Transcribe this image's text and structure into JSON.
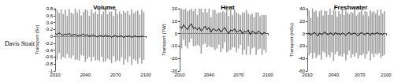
{
  "row_label": "Davis Strait",
  "chart_data": [
    {
      "type": "line",
      "title": "Volume",
      "y_label": "Transport (Sv)",
      "color": "#000000",
      "grid": false,
      "xlim": [
        2010,
        2100
      ],
      "xticks": [
        2010,
        2040,
        2070,
        2100
      ],
      "ylim": [
        -1,
        0.8
      ],
      "yticks": [
        -1,
        -0.8,
        -0.6,
        -0.4,
        -0.2,
        0,
        0.2,
        0.4,
        0.6,
        0.8
      ],
      "x": [
        2010,
        2012,
        2014,
        2016,
        2018,
        2020,
        2022,
        2024,
        2026,
        2028,
        2030,
        2032,
        2034,
        2036,
        2038,
        2040,
        2042,
        2044,
        2046,
        2048,
        2050,
        2052,
        2054,
        2056,
        2058,
        2060,
        2062,
        2064,
        2066,
        2068,
        2070,
        2072,
        2074,
        2076,
        2078,
        2080,
        2082,
        2084,
        2086,
        2088,
        2090,
        2092,
        2094,
        2096,
        2098
      ],
      "values": [
        0.08,
        0.05,
        0.1,
        0.06,
        0.03,
        0.07,
        0.04,
        0.09,
        0.02,
        0.05,
        0.06,
        0.01,
        0.04,
        0.03,
        0.07,
        0.02,
        0.05,
        0.0,
        0.03,
        0.04,
        0.01,
        -0.02,
        0.03,
        0.02,
        -0.01,
        0.04,
        0.0,
        0.02,
        -0.03,
        0.01,
        0.03,
        -0.02,
        0.0,
        0.02,
        -0.04,
        0.01,
        -0.01,
        0.02,
        -0.03,
        0.0,
        0.01,
        -0.02,
        0.0,
        -0.01,
        0.01
      ],
      "errors": [
        0.65,
        0.72,
        0.58,
        0.72,
        0.62,
        0.7,
        0.55,
        0.7,
        0.66,
        0.6,
        0.74,
        0.68,
        0.74,
        0.57,
        0.64,
        0.76,
        0.7,
        0.59,
        0.75,
        0.63,
        0.71,
        0.66,
        0.75,
        0.61,
        0.73,
        0.76,
        0.64,
        0.69,
        0.75,
        0.58,
        0.76,
        0.67,
        0.72,
        0.62,
        0.78,
        0.68,
        0.74,
        0.6,
        0.8,
        0.66,
        0.71,
        0.77,
        0.63,
        0.78,
        0.69
      ]
    },
    {
      "type": "line",
      "title": "Heat",
      "y_label": "Transport (TW)",
      "color": "#000000",
      "grid": false,
      "xlim": [
        2010,
        2100
      ],
      "xticks": [
        2010,
        2040,
        2070,
        2100
      ],
      "ylim": [
        -30,
        20
      ],
      "yticks": [
        -30,
        -20,
        -10,
        0,
        10,
        20
      ],
      "x": [
        2010,
        2012,
        2014,
        2016,
        2018,
        2020,
        2022,
        2024,
        2026,
        2028,
        2030,
        2032,
        2034,
        2036,
        2038,
        2040,
        2042,
        2044,
        2046,
        2048,
        2050,
        2052,
        2054,
        2056,
        2058,
        2060,
        2062,
        2064,
        2066,
        2068,
        2070,
        2072,
        2074,
        2076,
        2078,
        2080,
        2082,
        2084,
        2086,
        2088,
        2090,
        2092,
        2094,
        2096,
        2098
      ],
      "values": [
        6,
        4,
        7,
        5,
        3,
        6,
        8,
        4,
        5,
        3,
        5,
        2,
        4,
        6,
        3,
        5,
        1,
        4,
        3,
        2,
        4,
        1,
        3,
        5,
        2,
        0,
        3,
        2,
        4,
        1,
        2,
        3,
        0,
        2,
        1,
        3,
        -1,
        2,
        1,
        0,
        2,
        1,
        -1,
        1,
        0
      ],
      "errors": [
        14,
        16,
        12,
        15,
        15,
        13,
        12,
        14,
        15,
        12,
        15,
        18,
        13,
        14,
        14,
        15,
        12,
        15,
        16,
        14,
        13,
        16,
        15,
        12,
        17,
        14,
        16,
        13,
        15,
        16,
        14,
        12,
        17,
        15,
        18,
        13,
        16,
        14,
        12,
        17,
        15,
        13,
        16,
        14,
        15
      ]
    },
    {
      "type": "line",
      "title": "Freshwater",
      "y_label": "Transport (mSv)",
      "color": "#000000",
      "grid": false,
      "xlim": [
        2010,
        2100
      ],
      "xticks": [
        2010,
        2040,
        2070,
        2100
      ],
      "ylim": [
        -60,
        40
      ],
      "yticks": [
        -60,
        -40,
        -20,
        0,
        20,
        40
      ],
      "x": [
        2010,
        2012,
        2014,
        2016,
        2018,
        2020,
        2022,
        2024,
        2026,
        2028,
        2030,
        2032,
        2034,
        2036,
        2038,
        2040,
        2042,
        2044,
        2046,
        2048,
        2050,
        2052,
        2054,
        2056,
        2058,
        2060,
        2062,
        2064,
        2066,
        2068,
        2070,
        2072,
        2074,
        2076,
        2078,
        2080,
        2082,
        2084,
        2086,
        2088,
        2090,
        2092,
        2094,
        2096,
        2098
      ],
      "values": [
        -2,
        1,
        -3,
        0,
        2,
        -1,
        -4,
        1,
        -2,
        0,
        3,
        -1,
        -2,
        1,
        0,
        -3,
        2,
        -1,
        0,
        -2,
        1,
        -1,
        -3,
        0,
        2,
        -2,
        0,
        1,
        -1,
        -4,
        0,
        2,
        -1,
        -2,
        1,
        0,
        -3,
        1,
        -1,
        0,
        2,
        -1,
        0,
        -2,
        1
      ],
      "errors": [
        30,
        36,
        28,
        40,
        33,
        38,
        31,
        35,
        40,
        29,
        34,
        37,
        32,
        39,
        30,
        41,
        35,
        28,
        36,
        33,
        38,
        31,
        40,
        34,
        29,
        37,
        33,
        38,
        30,
        36,
        35,
        37,
        31,
        38,
        34,
        28,
        40,
        33,
        37,
        32,
        36,
        30,
        39,
        34,
        35
      ]
    }
  ]
}
